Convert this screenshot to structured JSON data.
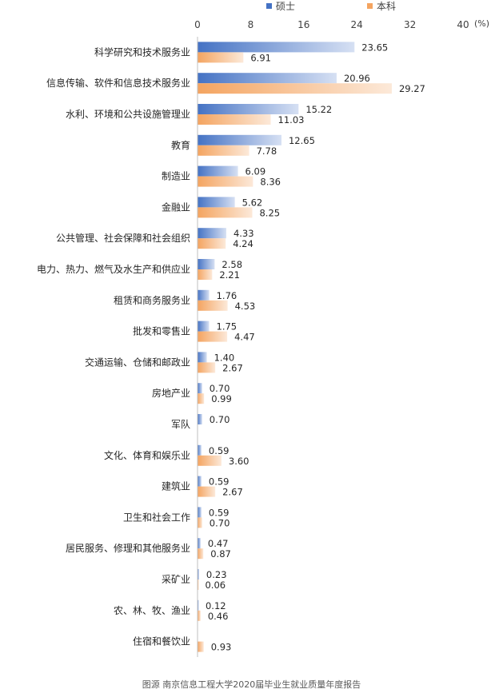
{
  "chart_data": {
    "type": "bar",
    "orientation": "horizontal",
    "unit": "(%)",
    "xlim": [
      0,
      40
    ],
    "xticks": [
      0,
      8,
      16,
      24,
      32,
      40
    ],
    "grid": false,
    "legend_position": "top",
    "categories": [
      "科学研究和技术服务业",
      "信息传输、软件和信息技术服务业",
      "水利、环境和公共设施管理业",
      "教育",
      "制造业",
      "金融业",
      "公共管理、社会保障和社会组织",
      "电力、热力、燃气及水生产和供应业",
      "租赁和商务服务业",
      "批发和零售业",
      "交通运输、仓储和邮政业",
      "房地产业",
      "军队",
      "文化、体育和娱乐业",
      "建筑业",
      "卫生和社会工作",
      "居民服务、修理和其他服务业",
      "采矿业",
      "农、林、牧、渔业",
      "住宿和餐饮业"
    ],
    "series": [
      {
        "name": "硕士",
        "color": "#4472C4",
        "values": [
          23.65,
          20.96,
          15.22,
          12.65,
          6.09,
          5.62,
          4.33,
          2.58,
          1.76,
          1.75,
          1.4,
          0.7,
          0.7,
          0.59,
          0.59,
          0.59,
          0.47,
          0.23,
          0.12,
          null
        ],
        "labels": [
          "23.65",
          "20.96",
          "15.22",
          "12.65",
          "6.09",
          "5.62",
          "4.33",
          "2.58",
          "1.76",
          "1.75",
          "1.40",
          "0.70",
          "0.70",
          "0.59",
          "0.59",
          "0.59",
          "0.47",
          "0.23",
          "0.12",
          ""
        ]
      },
      {
        "name": "本科",
        "color": "#F4A460",
        "values": [
          6.91,
          29.27,
          11.03,
          7.78,
          8.36,
          8.25,
          4.24,
          2.21,
          4.53,
          4.47,
          2.67,
          0.99,
          null,
          3.6,
          2.67,
          0.7,
          0.87,
          0.06,
          0.46,
          0.93
        ],
        "labels": [
          "6.91",
          "29.27",
          "11.03",
          "7.78",
          "8.36",
          "8.25",
          "4.24",
          "2.21",
          "4.53",
          "4.47",
          "2.67",
          "0.99",
          "",
          "3.60",
          "2.67",
          "0.70",
          "0.87",
          "0.06",
          "0.46",
          "0.93"
        ]
      }
    ]
  },
  "caption": "图源 南京信息工程大学2020届毕业生就业质量年度报告"
}
